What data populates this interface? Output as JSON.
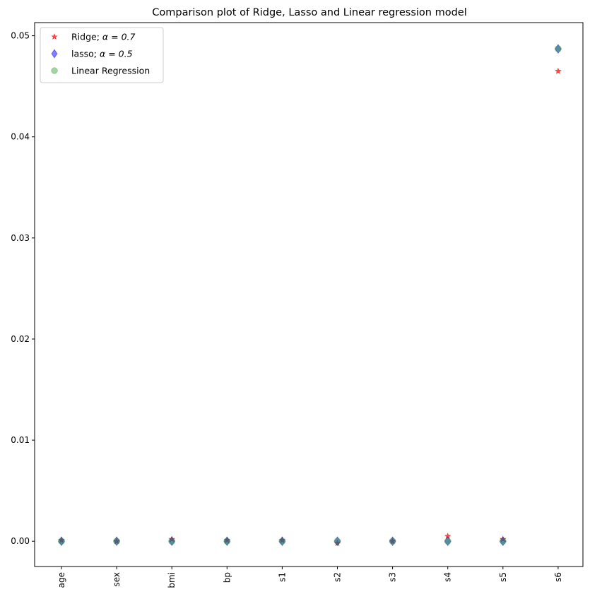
{
  "chart_data": {
    "type": "scatter",
    "title": "Comparison plot of Ridge, Lasso and Linear regression model",
    "xlabel": "",
    "ylabel": "",
    "categories": [
      "age",
      "sex",
      "bmi",
      "bp",
      "s1",
      "s2",
      "s3",
      "s4",
      "s5",
      "s6"
    ],
    "ylim": [
      -0.0025,
      0.0513
    ],
    "yticks": [
      0.0,
      0.01,
      0.02,
      0.03,
      0.04,
      0.05
    ],
    "ytick_labels": [
      "0.00",
      "0.01",
      "0.02",
      "0.03",
      "0.04",
      "0.05"
    ],
    "grid": false,
    "legend_position": "top-left",
    "series": [
      {
        "name": "Ridge; α = 0.7",
        "name_prefix": "Ridge; ",
        "name_math": "α = 0.7",
        "marker": "star",
        "color": "#ff0000",
        "alpha": 0.7,
        "values": [
          0.0001,
          0.0,
          0.0002,
          0.0001,
          0.0001,
          -0.0002,
          0.0,
          0.0005,
          0.0002,
          0.0465
        ]
      },
      {
        "name": "lasso; α = 0.5",
        "name_prefix": "lasso; ",
        "name_math": "α = 0.5",
        "marker": "thin_diamond",
        "color": "#0000ff",
        "alpha": 0.5,
        "values": [
          0.0,
          0.0,
          0.0,
          0.0,
          0.0,
          0.0,
          0.0,
          0.0,
          0.0,
          0.0487
        ]
      },
      {
        "name": "Linear Regression",
        "name_prefix": "Linear Regression",
        "name_math": "",
        "marker": "circle",
        "color": "#2ca02c",
        "alpha": 0.45,
        "values": [
          0.0,
          0.0,
          0.0,
          0.0,
          0.0,
          0.0,
          0.0,
          0.0,
          0.0,
          0.0487
        ]
      }
    ]
  }
}
